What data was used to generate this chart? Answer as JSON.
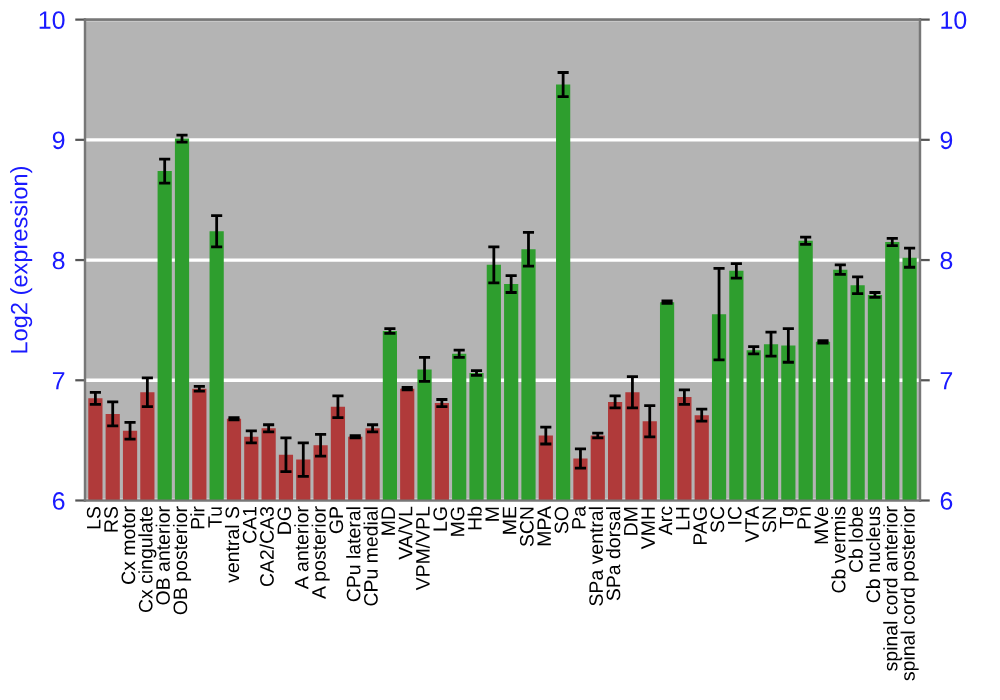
{
  "chart_data": {
    "type": "bar",
    "ylabel": "Log2 (expression)",
    "categories": [
      "LS",
      "RS",
      "Cx motor",
      "Cx cingulate",
      "OB anterior",
      "OB posterior",
      "Pir",
      "Tu",
      "ventral S",
      "CA1",
      "CA2/CA3",
      "DG",
      "A anterior",
      "A posterior",
      "GP",
      "CPu lateral",
      "CPu medial",
      "MD",
      "VA/VL",
      "VPM/VPL",
      "LG",
      "MG",
      "Hb",
      "M",
      "ME",
      "SCN",
      "MPA",
      "SO",
      "Pa",
      "SPa ventral",
      "SPa dorsal",
      "DM",
      "VMH",
      "Arc",
      "LH",
      "PAG",
      "SC",
      "IC",
      "VTA",
      "SN",
      "Tg",
      "Pn",
      "MVe",
      "Cb vermis",
      "Cb lobe",
      "Cb nucleus",
      "spinal cord anterior",
      "spinal cord posterior"
    ],
    "values": [
      6.85,
      6.72,
      6.58,
      6.9,
      8.74,
      9.01,
      6.93,
      8.24,
      6.68,
      6.53,
      6.6,
      6.38,
      6.34,
      6.46,
      6.78,
      6.53,
      6.6,
      7.41,
      6.93,
      7.09,
      6.81,
      7.22,
      7.06,
      7.96,
      7.8,
      8.09,
      6.54,
      9.46,
      6.35,
      6.54,
      6.82,
      6.9,
      6.66,
      7.65,
      6.86,
      6.71,
      7.55,
      7.91,
      7.25,
      7.3,
      7.29,
      8.16,
      7.32,
      7.92,
      7.79,
      7.71,
      8.15,
      8.02
    ],
    "errors": [
      0.05,
      0.1,
      0.07,
      0.12,
      0.1,
      0.03,
      0.02,
      0.13,
      0.01,
      0.05,
      0.03,
      0.14,
      0.14,
      0.09,
      0.09,
      0.01,
      0.03,
      0.02,
      0.01,
      0.1,
      0.03,
      0.03,
      0.02,
      0.15,
      0.07,
      0.14,
      0.07,
      0.1,
      0.08,
      0.02,
      0.05,
      0.13,
      0.13,
      0.01,
      0.06,
      0.05,
      0.38,
      0.06,
      0.03,
      0.1,
      0.14,
      0.03,
      0.01,
      0.04,
      0.07,
      0.02,
      0.03,
      0.08
    ],
    "colors": [
      "#b03a3a",
      "#b03a3a",
      "#b03a3a",
      "#b03a3a",
      "#2e9e2e",
      "#2e9e2e",
      "#b03a3a",
      "#2e9e2e",
      "#b03a3a",
      "#b03a3a",
      "#b03a3a",
      "#b03a3a",
      "#b03a3a",
      "#b03a3a",
      "#b03a3a",
      "#b03a3a",
      "#b03a3a",
      "#2e9e2e",
      "#b03a3a",
      "#2e9e2e",
      "#b03a3a",
      "#2e9e2e",
      "#2e9e2e",
      "#2e9e2e",
      "#2e9e2e",
      "#2e9e2e",
      "#b03a3a",
      "#2e9e2e",
      "#b03a3a",
      "#b03a3a",
      "#b03a3a",
      "#b03a3a",
      "#b03a3a",
      "#2e9e2e",
      "#b03a3a",
      "#b03a3a",
      "#2e9e2e",
      "#2e9e2e",
      "#2e9e2e",
      "#2e9e2e",
      "#2e9e2e",
      "#2e9e2e",
      "#2e9e2e",
      "#2e9e2e",
      "#2e9e2e",
      "#2e9e2e",
      "#2e9e2e",
      "#2e9e2e"
    ],
    "ylim": [
      6,
      10
    ],
    "yticks": [
      6,
      7,
      8,
      9,
      10
    ],
    "y2lim": [
      6,
      10
    ],
    "y2ticks": [
      6,
      7,
      8,
      9,
      10
    ],
    "grid": "y"
  }
}
